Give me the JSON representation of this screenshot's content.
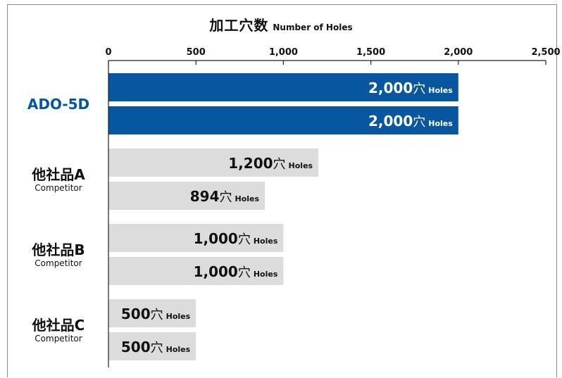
{
  "title": {
    "ja": "加工穴数",
    "en": "Number of Holes"
  },
  "chart_data": {
    "type": "bar",
    "orientation": "horizontal",
    "xlim": [
      0,
      2500
    ],
    "ticks": [
      "0",
      "500",
      "1,000",
      "1,500",
      "2,000",
      "2,500"
    ],
    "tick_values": [
      0,
      500,
      1000,
      1500,
      2000,
      2500
    ],
    "unit_ja": "穴",
    "unit_en": "Holes",
    "colors": {
      "highlight": "#0757a0",
      "default": "#dcdcdc",
      "highlight_label": "#0757a0"
    },
    "groups": [
      {
        "name": "ADO-5D",
        "sub": "",
        "highlight": true,
        "values": [
          2000,
          2000
        ],
        "labels": [
          "2,000",
          "2,000"
        ]
      },
      {
        "name": "他社品A",
        "sub": "Competitor",
        "highlight": false,
        "values": [
          1200,
          894
        ],
        "labels": [
          "1,200",
          "894"
        ]
      },
      {
        "name": "他社品B",
        "sub": "Competitor",
        "highlight": false,
        "values": [
          1000,
          1000
        ],
        "labels": [
          "1,000",
          "1,000"
        ]
      },
      {
        "name": "他社品C",
        "sub": "Competitor",
        "highlight": false,
        "values": [
          500,
          500
        ],
        "labels": [
          "500",
          "500"
        ]
      }
    ]
  }
}
